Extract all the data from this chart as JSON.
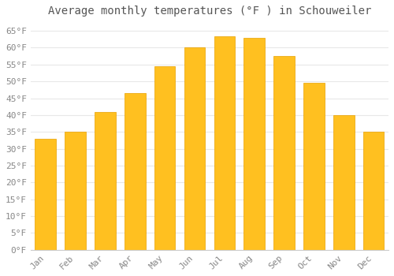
{
  "title": "Average monthly temperatures (°F ) in Schouweiler",
  "months": [
    "Jan",
    "Feb",
    "Mar",
    "Apr",
    "May",
    "Jun",
    "Jul",
    "Aug",
    "Sep",
    "Oct",
    "Nov",
    "Dec"
  ],
  "values": [
    33,
    35,
    41,
    46.5,
    54.5,
    60,
    63.5,
    63,
    57.5,
    49.5,
    40,
    35
  ],
  "bar_color": "#FFC020",
  "bar_edge_color": "#E8A000",
  "ylim": [
    0,
    68
  ],
  "yticks": [
    0,
    5,
    10,
    15,
    20,
    25,
    30,
    35,
    40,
    45,
    50,
    55,
    60,
    65
  ],
  "ytick_labels": [
    "0°F",
    "5°F",
    "10°F",
    "15°F",
    "20°F",
    "25°F",
    "30°F",
    "35°F",
    "40°F",
    "45°F",
    "50°F",
    "55°F",
    "60°F",
    "65°F"
  ],
  "background_color": "#ffffff",
  "grid_color": "#e8e8e8",
  "title_fontsize": 10,
  "tick_fontsize": 8,
  "title_color": "#555555",
  "tick_color": "#888888"
}
